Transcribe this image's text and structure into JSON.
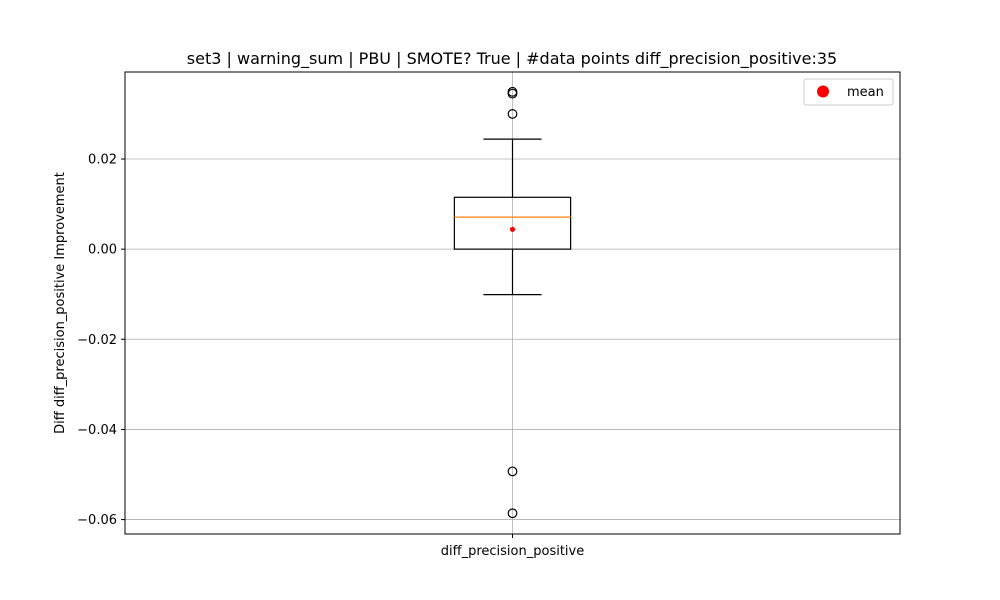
{
  "chart_data": {
    "type": "box",
    "title": "set3 | warning_sum | PBU | SMOTE? True | #data points diff_precision_positive:35",
    "xlabel": "",
    "ylabel": "Diff diff_precision_positive Improvement",
    "categories": [
      "diff_precision_positive"
    ],
    "ylim": [
      -0.0632,
      0.0393
    ],
    "yticks": [
      0.02,
      0.0,
      -0.02,
      -0.04,
      -0.06
    ],
    "ytick_labels": [
      "0.02",
      "0.00",
      "−0.02",
      "−0.04",
      "−0.06"
    ],
    "grid": true,
    "legend": {
      "position": "top-right",
      "entries": [
        {
          "label": "mean",
          "color": "#ff0000",
          "marker": "circle"
        }
      ]
    },
    "boxes": [
      {
        "name": "diff_precision_positive",
        "whisker_low": -0.0101,
        "q1": 0.0,
        "median": 0.0071,
        "q3": 0.0115,
        "whisker_high": 0.0244,
        "mean": 0.0044,
        "outliers": [
          0.0349,
          0.0345,
          0.03,
          -0.0493,
          -0.0586
        ]
      }
    ],
    "colors": {
      "box": "#000000",
      "median": "#ff7f0e",
      "mean": "#ff0000",
      "grid": "#b0b0b0"
    }
  }
}
